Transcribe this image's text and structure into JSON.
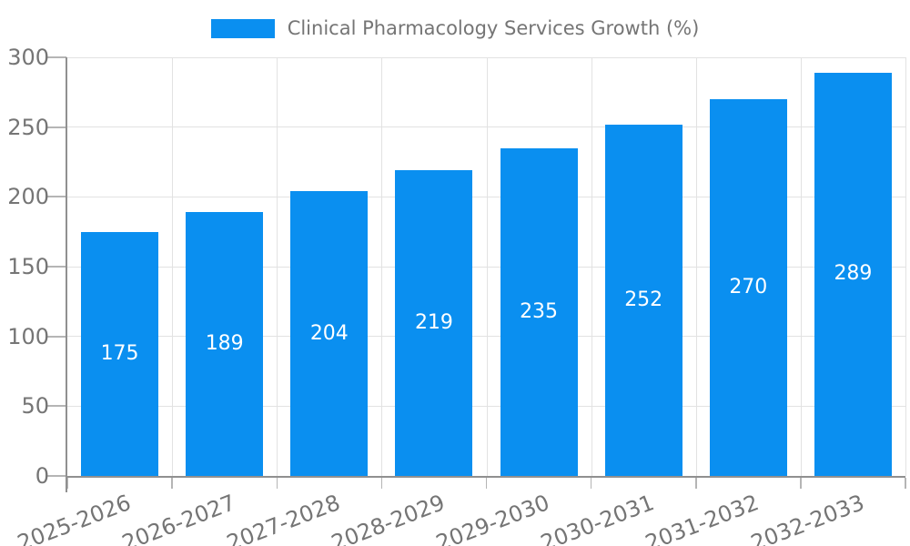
{
  "chart_data": {
    "type": "bar",
    "series_name": "Clinical Pharmacology Services Growth (%)",
    "categories": [
      "2025-2026",
      "2026-2027",
      "2027-2028",
      "2028-2029",
      "2029-2030",
      "2030-2031",
      "2031-2032",
      "2032-2033"
    ],
    "values": [
      175,
      189,
      204,
      219,
      235,
      252,
      270,
      289
    ],
    "value_labels": [
      "175",
      "189",
      "204",
      "219",
      "235",
      "252",
      "270",
      "289"
    ],
    "ylim": [
      0,
      300
    ],
    "yticks": [
      0,
      50,
      100,
      150,
      200,
      250,
      300
    ],
    "ytick_labels": [
      "0",
      "50",
      "100",
      "150",
      "200",
      "250",
      "300"
    ],
    "grid": true,
    "legend_position": "top-center",
    "value_label_position": "inside-center",
    "colors": {
      "bar": "#0a8ff0",
      "value_label": "#ffffff",
      "axis_text": "#757575",
      "gridline": "#e2e2e2",
      "axis_line": "#909090",
      "tick": "#b5b5b5",
      "background": "#ffffff"
    }
  }
}
